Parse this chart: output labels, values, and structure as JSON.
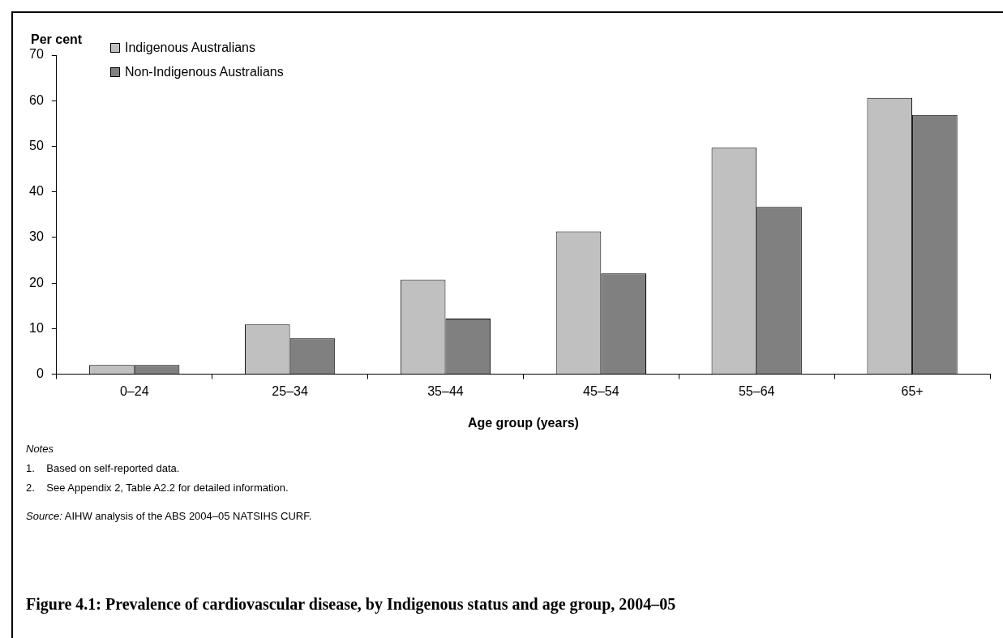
{
  "chart_data": {
    "type": "bar",
    "title": "Figure 4.1: Prevalence of cardiovascular disease, by Indigenous status and age group, 2004–05",
    "xlabel": "Age group (years)",
    "ylabel": "Per cent",
    "categories": [
      "0–24",
      "25–34",
      "35–44",
      "45–54",
      "55–64",
      "65+"
    ],
    "series": [
      {
        "name": "Indigenous Australians",
        "color": "#c0c0c0",
        "values": [
          2.0,
          10.9,
          20.7,
          31.3,
          49.7,
          60.6
        ]
      },
      {
        "name": "Non-Indigenous Australians",
        "color": "#808080",
        "values": [
          2.0,
          7.9,
          12.2,
          22.1,
          36.7,
          56.9
        ]
      }
    ],
    "ylim": [
      0,
      70
    ],
    "yticks": [
      0,
      10,
      20,
      30,
      40,
      50,
      60,
      70
    ],
    "grid": false,
    "legend": "top left",
    "annotations": [
      "Notes",
      "1.\tBased on self-reported data.",
      "2.\tSee Appendix 2, Table A2.2 for detailed information.",
      "Source: AIHW analysis of the ABS 2004–05 NATSIHS CURF."
    ]
  }
}
